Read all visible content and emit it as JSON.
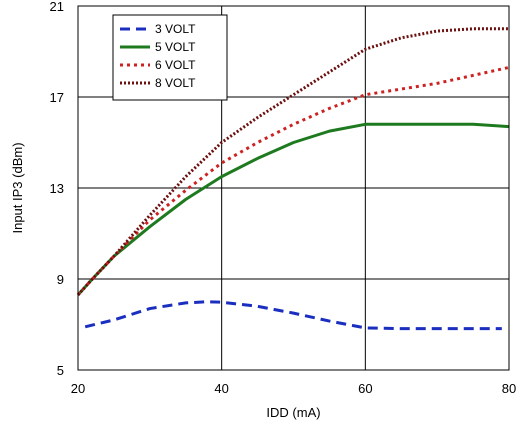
{
  "chart_data": {
    "type": "line",
    "title": "",
    "xlabel": "IDD (mA)",
    "ylabel": "Input IP3 (dBm)",
    "xlim": [
      20,
      80
    ],
    "ylim": [
      5,
      21
    ],
    "xticks": [
      20,
      40,
      60,
      80
    ],
    "yticks": [
      5,
      9,
      13,
      17,
      21
    ],
    "xtick_labels": [
      "20",
      "40",
      "60",
      "80"
    ],
    "ytick_labels": [
      "5",
      "9",
      "13",
      "17",
      "21"
    ],
    "grid": true,
    "legend_position": "top-left",
    "series": [
      {
        "name": "3 VOLT",
        "color": "#1a2fbf",
        "style": "dashed",
        "x": [
          21,
          25,
          30,
          35,
          38,
          40,
          45,
          50,
          55,
          60,
          65,
          70,
          75,
          79
        ],
        "y": [
          6.9,
          7.2,
          7.7,
          7.95,
          8.0,
          7.98,
          7.8,
          7.5,
          7.15,
          6.85,
          6.82,
          6.82,
          6.82,
          6.82
        ]
      },
      {
        "name": "5 VOLT",
        "color": "#1e7a1e",
        "style": "solid",
        "x": [
          20,
          22,
          25,
          30,
          35,
          40,
          45,
          50,
          55,
          60,
          65,
          70,
          75,
          80
        ],
        "y": [
          8.3,
          9.0,
          10.0,
          11.3,
          12.5,
          13.5,
          14.3,
          15.0,
          15.5,
          15.8,
          15.8,
          15.8,
          15.8,
          15.7
        ]
      },
      {
        "name": "6 VOLT",
        "color": "#cc2222",
        "style": "dotted",
        "x": [
          20,
          22,
          25,
          30,
          35,
          40,
          45,
          50,
          55,
          60,
          65,
          70,
          75,
          80
        ],
        "y": [
          8.3,
          9.0,
          10.0,
          11.6,
          12.9,
          14.1,
          15.0,
          15.8,
          16.5,
          17.1,
          17.35,
          17.6,
          17.95,
          18.3
        ]
      },
      {
        "name": "8 VOLT",
        "color": "#6b0f0f",
        "style": "dense-dotted",
        "x": [
          20,
          22,
          25,
          30,
          35,
          40,
          45,
          50,
          55,
          60,
          65,
          70,
          75,
          80
        ],
        "y": [
          8.3,
          9.0,
          10.0,
          11.8,
          13.5,
          15.0,
          16.1,
          17.1,
          18.1,
          19.1,
          19.6,
          19.9,
          20.0,
          20.0
        ]
      }
    ]
  }
}
